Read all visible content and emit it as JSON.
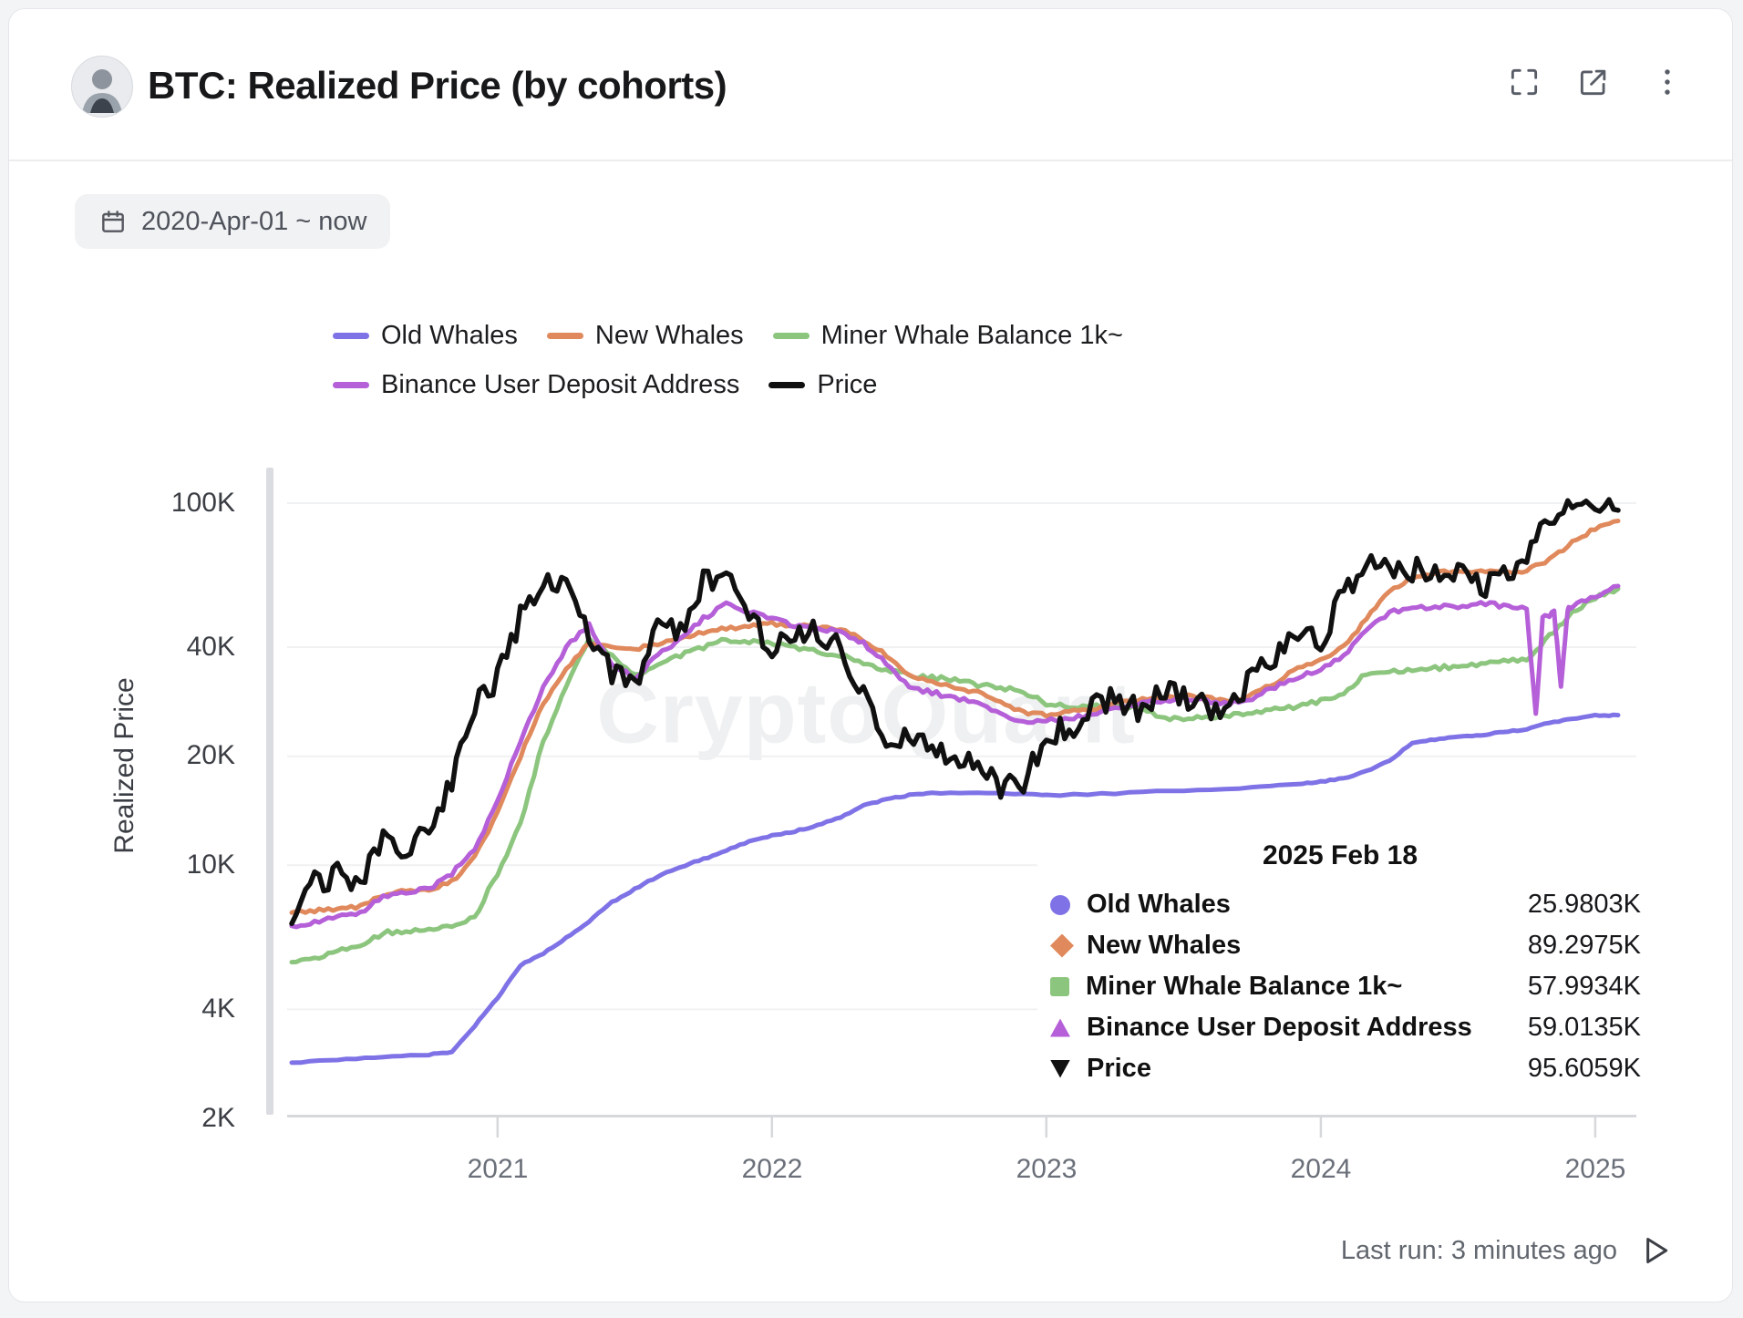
{
  "header": {
    "title": "BTC: Realized Price (by cohorts)"
  },
  "icons": {
    "header": [
      "fullscreen-icon",
      "open-external-icon",
      "more-menu-icon"
    ],
    "date_chip": "calendar-icon",
    "footer": "run-play-icon",
    "avatar": "author-avatar"
  },
  "date_range": {
    "label": "2020-Apr-01 ~ now"
  },
  "legend": {
    "items": [
      {
        "label": "Old Whales",
        "color": "#7e72e6"
      },
      {
        "label": "New Whales",
        "color": "#e0895c"
      },
      {
        "label": "Miner Whale Balance 1k~",
        "color": "#8cc57d"
      },
      {
        "label": "Binance User Deposit Address",
        "color": "#b55fd8"
      },
      {
        "label": "Price",
        "color": "#101010"
      }
    ]
  },
  "y_axis": {
    "title": "Realized Price",
    "ticks": [
      "100K",
      "40K",
      "20K",
      "10K",
      "4K",
      "2K"
    ]
  },
  "x_axis": {
    "ticks": [
      "2021",
      "2022",
      "2023",
      "2024",
      "2025"
    ]
  },
  "watermark": "CryptoQuant",
  "tooltip": {
    "date": "2025 Feb 18",
    "rows": [
      {
        "label": "Old Whales",
        "value": "25.9803K",
        "marker": "circle",
        "color": "#7e72e6"
      },
      {
        "label": "New Whales",
        "value": "89.2975K",
        "marker": "diamond",
        "color": "#e0895c"
      },
      {
        "label": "Miner Whale Balance 1k~",
        "value": "57.9934K",
        "marker": "square",
        "color": "#8cc57d"
      },
      {
        "label": "Binance User Deposit Address",
        "value": "59.0135K",
        "marker": "triangle-up",
        "color": "#b55fd8"
      },
      {
        "label": "Price",
        "value": "95.6059K",
        "marker": "triangle-down",
        "color": "#101010"
      }
    ]
  },
  "footer": {
    "last_run": "Last run: 3 minutes ago"
  },
  "chart_data": {
    "type": "line",
    "title": "BTC: Realized Price (by cohorts)",
    "xlabel": "",
    "ylabel": "Realized Price",
    "y_scale": "log",
    "y_unit": "K USD",
    "ylim_k": [
      2,
      110
    ],
    "x_unit": "months since 2020-04 (0 = 2020-Apr, 58 = 2025-Feb)",
    "x_range": [
      "2020-04-01",
      "2025-02-18"
    ],
    "grid": true,
    "legend_position": "top",
    "y_gridlines_k": [
      100,
      40,
      20,
      10,
      4
    ],
    "y_ticks_k": [
      100,
      40,
      20,
      10,
      4,
      2
    ],
    "x_year_ticks": [
      {
        "label": "2021",
        "m": 9
      },
      {
        "label": "2022",
        "m": 21
      },
      {
        "label": "2023",
        "m": 33
      },
      {
        "label": "2024",
        "m": 45
      },
      {
        "label": "2025",
        "m": 57
      }
    ],
    "series": [
      {
        "id": "old-whales",
        "name": "Old Whales",
        "color": "#7e72e6",
        "jitter": 0.002,
        "width": 5,
        "points": [
          [
            0,
            2.85
          ],
          [
            2,
            2.9
          ],
          [
            4,
            2.95
          ],
          [
            6,
            3.0
          ],
          [
            7,
            3.05
          ],
          [
            8,
            3.6
          ],
          [
            9,
            4.3
          ],
          [
            10,
            5.3
          ],
          [
            11,
            5.7
          ],
          [
            12,
            6.3
          ],
          [
            13,
            7.0
          ],
          [
            14,
            7.9
          ],
          [
            15,
            8.6
          ],
          [
            16,
            9.3
          ],
          [
            17,
            9.9
          ],
          [
            18,
            10.4
          ],
          [
            19,
            11.0
          ],
          [
            20,
            11.6
          ],
          [
            21,
            12.1
          ],
          [
            22,
            12.4
          ],
          [
            23,
            12.9
          ],
          [
            24,
            13.6
          ],
          [
            25,
            14.6
          ],
          [
            26,
            15.2
          ],
          [
            27,
            15.6
          ],
          [
            28,
            15.8
          ],
          [
            30,
            15.8
          ],
          [
            32,
            15.7
          ],
          [
            33,
            15.6
          ],
          [
            36,
            15.8
          ],
          [
            39,
            16.1
          ],
          [
            42,
            16.4
          ],
          [
            44,
            16.8
          ],
          [
            45,
            17.0
          ],
          [
            46,
            17.4
          ],
          [
            47,
            18.2
          ],
          [
            48,
            19.4
          ],
          [
            49,
            21.8
          ],
          [
            50,
            22.3
          ],
          [
            51,
            22.6
          ],
          [
            52,
            22.9
          ],
          [
            53,
            23.3
          ],
          [
            54,
            23.8
          ],
          [
            55,
            24.8
          ],
          [
            56,
            25.4
          ],
          [
            57,
            25.9
          ],
          [
            58,
            25.9803
          ]
        ]
      },
      {
        "id": "miner-whale-balance",
        "name": "Miner Whale Balance 1k~",
        "color": "#8cc57d",
        "jitter": 0.006,
        "width": 5,
        "points": [
          [
            0,
            5.4
          ],
          [
            1,
            5.5
          ],
          [
            2,
            5.8
          ],
          [
            3,
            6.0
          ],
          [
            4,
            6.5
          ],
          [
            5,
            6.6
          ],
          [
            6,
            6.6
          ],
          [
            7,
            6.8
          ],
          [
            8,
            7.2
          ],
          [
            9,
            9.5
          ],
          [
            10,
            13
          ],
          [
            11,
            22
          ],
          [
            12,
            31
          ],
          [
            13,
            42
          ],
          [
            14,
            38
          ],
          [
            15,
            33.5
          ],
          [
            16,
            36
          ],
          [
            17,
            38
          ],
          [
            18,
            40
          ],
          [
            19,
            42
          ],
          [
            20,
            41.5
          ],
          [
            21,
            41
          ],
          [
            22,
            40
          ],
          [
            23,
            39
          ],
          [
            24,
            38
          ],
          [
            25,
            36
          ],
          [
            26,
            34.5
          ],
          [
            27,
            33.5
          ],
          [
            28,
            33
          ],
          [
            29,
            32.5
          ],
          [
            30,
            31.5
          ],
          [
            31,
            31
          ],
          [
            32,
            30
          ],
          [
            33,
            28
          ],
          [
            34,
            27.5
          ],
          [
            35,
            27.5
          ],
          [
            36,
            27.5
          ],
          [
            37,
            27.5
          ],
          [
            38,
            25.5
          ],
          [
            39,
            25.5
          ],
          [
            40,
            25.5
          ],
          [
            41,
            26
          ],
          [
            42,
            26.5
          ],
          [
            43,
            27
          ],
          [
            44,
            27.5
          ],
          [
            45,
            28.5
          ],
          [
            46,
            29.5
          ],
          [
            47,
            34
          ],
          [
            48,
            34.5
          ],
          [
            49,
            34.5
          ],
          [
            50,
            35
          ],
          [
            51,
            35.5
          ],
          [
            52,
            36
          ],
          [
            53,
            36.5
          ],
          [
            54,
            37
          ],
          [
            55,
            43
          ],
          [
            56,
            50
          ],
          [
            57,
            55
          ],
          [
            58,
            57.9934
          ]
        ]
      },
      {
        "id": "new-whales",
        "name": "New Whales",
        "color": "#e0895c",
        "jitter": 0.005,
        "width": 5,
        "points": [
          [
            0,
            7.4
          ],
          [
            1,
            7.5
          ],
          [
            2,
            7.6
          ],
          [
            3,
            7.7
          ],
          [
            4,
            8.3
          ],
          [
            5,
            8.5
          ],
          [
            6,
            8.6
          ],
          [
            7,
            9.0
          ],
          [
            8,
            10.5
          ],
          [
            9,
            14
          ],
          [
            10,
            20
          ],
          [
            11,
            28
          ],
          [
            12,
            35
          ],
          [
            13,
            41
          ],
          [
            14,
            40
          ],
          [
            15,
            39.5
          ],
          [
            16,
            41
          ],
          [
            17,
            42.5
          ],
          [
            18,
            44
          ],
          [
            19,
            45
          ],
          [
            20,
            46
          ],
          [
            21,
            46.5
          ],
          [
            22,
            46
          ],
          [
            23,
            45.5
          ],
          [
            24,
            45
          ],
          [
            25,
            42
          ],
          [
            26,
            38
          ],
          [
            27,
            33.5
          ],
          [
            28,
            32
          ],
          [
            29,
            31
          ],
          [
            30,
            30
          ],
          [
            31,
            28
          ],
          [
            32,
            26.5
          ],
          [
            33,
            26
          ],
          [
            34,
            26.5
          ],
          [
            35,
            27
          ],
          [
            36,
            28
          ],
          [
            37,
            28.5
          ],
          [
            38,
            29
          ],
          [
            39,
            29.5
          ],
          [
            40,
            29
          ],
          [
            41,
            28.5
          ],
          [
            42,
            29.5
          ],
          [
            43,
            32
          ],
          [
            44,
            35
          ],
          [
            45,
            37
          ],
          [
            46,
            40
          ],
          [
            47,
            48
          ],
          [
            48,
            57
          ],
          [
            49,
            62
          ],
          [
            50,
            64
          ],
          [
            51,
            65
          ],
          [
            52,
            65
          ],
          [
            53,
            64
          ],
          [
            54,
            65
          ],
          [
            55,
            70
          ],
          [
            56,
            78
          ],
          [
            57,
            85
          ],
          [
            58,
            89.2975
          ]
        ]
      },
      {
        "id": "binance-user-deposit",
        "name": "Binance User Deposit Address",
        "color": "#b55fd8",
        "jitter": 0.006,
        "width": 5,
        "points": [
          [
            0,
            6.8
          ],
          [
            1,
            7.0
          ],
          [
            2,
            7.2
          ],
          [
            3,
            7.4
          ],
          [
            4,
            8.2
          ],
          [
            5,
            8.4
          ],
          [
            6,
            8.6
          ],
          [
            7,
            9.5
          ],
          [
            8,
            11
          ],
          [
            9,
            15
          ],
          [
            10,
            22
          ],
          [
            11,
            31
          ],
          [
            12,
            40
          ],
          [
            13,
            46
          ],
          [
            14,
            36
          ],
          [
            15,
            33
          ],
          [
            16,
            38
          ],
          [
            17,
            42
          ],
          [
            18,
            48
          ],
          [
            19,
            53
          ],
          [
            20,
            50
          ],
          [
            21,
            48
          ],
          [
            22,
            46
          ],
          [
            23,
            45
          ],
          [
            24,
            44
          ],
          [
            25,
            41
          ],
          [
            26,
            36
          ],
          [
            27,
            31
          ],
          [
            28,
            30
          ],
          [
            29,
            29
          ],
          [
            30,
            28
          ],
          [
            31,
            26
          ],
          [
            32,
            25
          ],
          [
            33,
            25
          ],
          [
            34,
            25.5
          ],
          [
            35,
            26
          ],
          [
            36,
            27
          ],
          [
            37,
            28
          ],
          [
            38,
            28.5
          ],
          [
            39,
            29
          ],
          [
            40,
            28.5
          ],
          [
            41,
            28
          ],
          [
            42,
            29
          ],
          [
            43,
            31
          ],
          [
            44,
            33
          ],
          [
            45,
            35
          ],
          [
            46,
            38
          ],
          [
            47,
            45
          ],
          [
            48,
            50
          ],
          [
            49,
            51
          ],
          [
            50,
            52
          ],
          [
            51,
            52
          ],
          [
            52,
            53
          ],
          [
            53,
            52
          ],
          [
            54,
            51
          ],
          [
            54.4,
            26
          ],
          [
            54.7,
            48
          ],
          [
            55.2,
            50
          ],
          [
            55.5,
            31
          ],
          [
            55.8,
            51
          ],
          [
            56,
            52
          ],
          [
            57,
            55
          ],
          [
            58,
            59.0135
          ]
        ]
      },
      {
        "id": "price",
        "name": "Price",
        "color": "#101010",
        "jitter": 0.035,
        "width": 5.5,
        "points": [
          [
            0,
            6.9
          ],
          [
            1,
            9.0
          ],
          [
            2,
            9.4
          ],
          [
            3,
            9.2
          ],
          [
            4,
            11.5
          ],
          [
            5,
            10.8
          ],
          [
            6,
            13
          ],
          [
            7,
            17
          ],
          [
            8,
            27
          ],
          [
            9,
            33
          ],
          [
            10,
            48
          ],
          [
            11,
            58
          ],
          [
            12,
            64
          ],
          [
            13,
            43
          ],
          [
            14,
            34
          ],
          [
            15,
            31
          ],
          [
            16,
            46
          ],
          [
            17,
            45
          ],
          [
            18,
            61
          ],
          [
            19,
            65
          ],
          [
            20,
            49
          ],
          [
            21,
            40
          ],
          [
            22,
            42
          ],
          [
            23,
            45
          ],
          [
            24,
            40
          ],
          [
            25,
            30
          ],
          [
            26,
            20
          ],
          [
            27,
            23
          ],
          [
            28,
            21
          ],
          [
            29,
            19.5
          ],
          [
            30,
            20
          ],
          [
            31,
            16.5
          ],
          [
            32,
            16.8
          ],
          [
            33,
            23
          ],
          [
            34,
            24
          ],
          [
            35,
            27
          ],
          [
            36,
            29
          ],
          [
            37,
            27
          ],
          [
            38,
            30
          ],
          [
            39,
            29.5
          ],
          [
            40,
            27
          ],
          [
            41,
            27
          ],
          [
            42,
            33
          ],
          [
            43,
            37
          ],
          [
            44,
            43
          ],
          [
            45,
            42
          ],
          [
            46,
            57
          ],
          [
            47,
            68
          ],
          [
            48,
            64
          ],
          [
            49,
            66
          ],
          [
            50,
            62
          ],
          [
            51,
            64
          ],
          [
            52,
            59
          ],
          [
            53,
            63
          ],
          [
            54,
            68
          ],
          [
            55,
            92
          ],
          [
            56,
            96
          ],
          [
            57,
            102
          ],
          [
            58,
            95.6059
          ]
        ]
      }
    ]
  }
}
